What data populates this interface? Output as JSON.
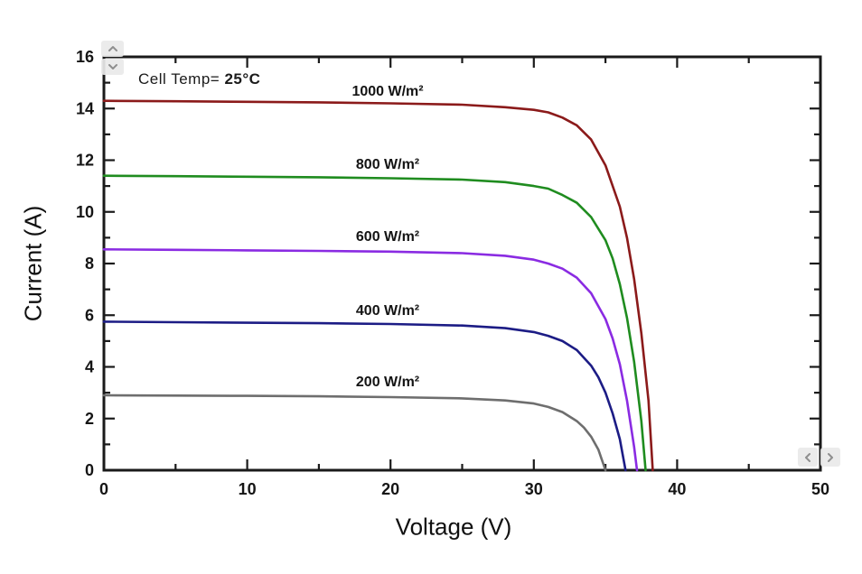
{
  "page": {
    "background": "#ffffff"
  },
  "controls": {
    "scroll_up_icon": "chevron-up-icon",
    "scroll_down_icon": "chevron-down-icon",
    "nav_prev_icon": "chevron-left-icon",
    "nav_next_icon": "chevron-right-icon"
  },
  "chart_data": {
    "type": "line",
    "title": "",
    "annotation": {
      "prefix": "Cell Temp= ",
      "value": "25°C"
    },
    "xlabel": "Voltage (V)",
    "ylabel": "Current (A)",
    "xlim": [
      0,
      50
    ],
    "ylim": [
      0,
      16
    ],
    "x_major_ticks": [
      0,
      10,
      20,
      30,
      40,
      50
    ],
    "x_minor_ticks": [
      5,
      15,
      25,
      35,
      45
    ],
    "y_major_ticks": [
      0,
      2,
      4,
      6,
      8,
      10,
      12,
      14,
      16
    ],
    "y_minor_ticks": [
      1,
      3,
      5,
      7,
      9,
      11,
      13,
      15
    ],
    "grid": false,
    "legend_position": "inline-curve-labels",
    "axis_color": "#1a1a1a",
    "series": [
      {
        "name": "1000",
        "label": "1000 W/m²",
        "color": "#8b1a1a",
        "isc_A": 14.3,
        "voc_V": 38.3,
        "label_at": [
          19.8,
          14.65
        ],
        "points": [
          [
            0,
            14.3
          ],
          [
            5,
            14.28
          ],
          [
            10,
            14.26
          ],
          [
            15,
            14.24
          ],
          [
            20,
            14.2
          ],
          [
            25,
            14.15
          ],
          [
            28,
            14.05
          ],
          [
            30,
            13.95
          ],
          [
            31,
            13.85
          ],
          [
            32,
            13.65
          ],
          [
            33,
            13.35
          ],
          [
            34,
            12.8
          ],
          [
            35,
            11.8
          ],
          [
            36,
            10.2
          ],
          [
            36.5,
            9.0
          ],
          [
            37,
            7.4
          ],
          [
            37.5,
            5.3
          ],
          [
            38,
            2.7
          ],
          [
            38.3,
            0
          ]
        ]
      },
      {
        "name": "800",
        "label": "800 W/m²",
        "color": "#1f8c1f",
        "isc_A": 11.4,
        "voc_V": 37.8,
        "label_at": [
          19.8,
          11.8
        ],
        "points": [
          [
            0,
            11.4
          ],
          [
            5,
            11.38
          ],
          [
            10,
            11.36
          ],
          [
            15,
            11.34
          ],
          [
            20,
            11.3
          ],
          [
            25,
            11.25
          ],
          [
            28,
            11.15
          ],
          [
            30,
            11.0
          ],
          [
            31,
            10.9
          ],
          [
            32,
            10.65
          ],
          [
            33,
            10.35
          ],
          [
            34,
            9.8
          ],
          [
            35,
            8.9
          ],
          [
            35.5,
            8.2
          ],
          [
            36,
            7.2
          ],
          [
            36.5,
            5.9
          ],
          [
            37,
            4.2
          ],
          [
            37.5,
            1.9
          ],
          [
            37.8,
            0
          ]
        ]
      },
      {
        "name": "600",
        "label": "600 W/m²",
        "color": "#8a2be2",
        "isc_A": 8.55,
        "voc_V": 37.2,
        "label_at": [
          19.8,
          9.0
        ],
        "points": [
          [
            0,
            8.55
          ],
          [
            5,
            8.53
          ],
          [
            10,
            8.51
          ],
          [
            15,
            8.49
          ],
          [
            20,
            8.46
          ],
          [
            25,
            8.4
          ],
          [
            28,
            8.3
          ],
          [
            30,
            8.15
          ],
          [
            31,
            8.0
          ],
          [
            32,
            7.8
          ],
          [
            33,
            7.45
          ],
          [
            34,
            6.85
          ],
          [
            35,
            5.85
          ],
          [
            35.5,
            5.1
          ],
          [
            36,
            4.1
          ],
          [
            36.5,
            2.7
          ],
          [
            37,
            0.9
          ],
          [
            37.2,
            0
          ]
        ]
      },
      {
        "name": "400",
        "label": "400 W/m²",
        "color": "#1c1c85",
        "isc_A": 5.75,
        "voc_V": 36.4,
        "label_at": [
          19.8,
          6.15
        ],
        "points": [
          [
            0,
            5.75
          ],
          [
            5,
            5.73
          ],
          [
            10,
            5.71
          ],
          [
            15,
            5.69
          ],
          [
            20,
            5.66
          ],
          [
            25,
            5.6
          ],
          [
            28,
            5.5
          ],
          [
            30,
            5.35
          ],
          [
            31,
            5.2
          ],
          [
            32,
            5.0
          ],
          [
            33,
            4.65
          ],
          [
            34,
            4.05
          ],
          [
            34.5,
            3.6
          ],
          [
            35,
            3.0
          ],
          [
            35.5,
            2.2
          ],
          [
            36,
            1.2
          ],
          [
            36.4,
            0
          ]
        ]
      },
      {
        "name": "200",
        "label": "200 W/m²",
        "color": "#6e6e6e",
        "isc_A": 2.9,
        "voc_V": 35.0,
        "label_at": [
          19.8,
          3.4
        ],
        "points": [
          [
            0,
            2.9
          ],
          [
            5,
            2.89
          ],
          [
            10,
            2.88
          ],
          [
            15,
            2.86
          ],
          [
            20,
            2.83
          ],
          [
            25,
            2.78
          ],
          [
            28,
            2.7
          ],
          [
            30,
            2.58
          ],
          [
            31,
            2.45
          ],
          [
            32,
            2.25
          ],
          [
            33,
            1.9
          ],
          [
            33.5,
            1.65
          ],
          [
            34,
            1.3
          ],
          [
            34.5,
            0.8
          ],
          [
            35,
            0
          ]
        ]
      }
    ]
  }
}
